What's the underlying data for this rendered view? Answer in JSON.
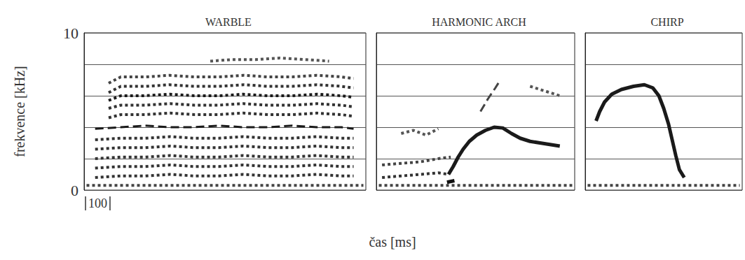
{
  "chart_data": [
    {
      "type": "line",
      "title": "WARBLE",
      "ylabel": "frekvence [kHz]",
      "xlim": [
        0,
        1150
      ],
      "ylim": [
        0,
        10
      ],
      "yticks": [
        0,
        {
          "value": 2,
          "label": null
        },
        {
          "value": 4,
          "label": null
        },
        {
          "value": 6,
          "label": null
        },
        {
          "value": 8,
          "label": null
        },
        10
      ],
      "grid": true,
      "tick_labels": "y",
      "scale_bar": 100,
      "series": [
        {
          "color": "#444444",
          "line_style": "dotted",
          "x": [
            10,
            200,
            400,
            600,
            800,
            1000,
            1140
          ],
          "values": [
            0.3,
            0.3,
            0.3,
            0.3,
            0.3,
            0.3,
            0.3
          ]
        },
        {
          "color": "#333333",
          "line_style": "dotted",
          "x": [
            45,
            150,
            250,
            350,
            450,
            550,
            650,
            750,
            850,
            950,
            1050,
            1100
          ],
          "values": [
            0.8,
            0.9,
            0.9,
            1.0,
            0.9,
            0.9,
            1.0,
            0.9,
            0.9,
            1.0,
            0.9,
            0.9
          ]
        },
        {
          "color": "#333333",
          "line_style": "dotted",
          "x": [
            45,
            150,
            250,
            350,
            450,
            550,
            650,
            750,
            850,
            950,
            1050,
            1100
          ],
          "values": [
            1.4,
            1.5,
            1.5,
            1.6,
            1.5,
            1.5,
            1.6,
            1.5,
            1.5,
            1.6,
            1.5,
            1.5
          ]
        },
        {
          "color": "#333333",
          "line_style": "dotted",
          "x": [
            45,
            150,
            250,
            350,
            450,
            550,
            650,
            750,
            850,
            950,
            1050,
            1100
          ],
          "values": [
            2.0,
            2.1,
            2.1,
            2.2,
            2.1,
            2.1,
            2.2,
            2.1,
            2.1,
            2.2,
            2.1,
            2.1
          ]
        },
        {
          "color": "#333333",
          "line_style": "dotted",
          "x": [
            45,
            150,
            250,
            350,
            450,
            550,
            650,
            750,
            850,
            950,
            1050,
            1100
          ],
          "values": [
            2.6,
            2.7,
            2.7,
            2.8,
            2.7,
            2.7,
            2.8,
            2.7,
            2.7,
            2.8,
            2.7,
            2.7
          ]
        },
        {
          "color": "#333333",
          "line_style": "dotted",
          "x": [
            45,
            150,
            250,
            350,
            450,
            550,
            650,
            750,
            850,
            950,
            1050,
            1100
          ],
          "values": [
            3.2,
            3.3,
            3.3,
            3.4,
            3.3,
            3.3,
            3.4,
            3.3,
            3.3,
            3.4,
            3.3,
            3.3
          ]
        },
        {
          "color": "#1a1a1a",
          "line_style": "dashed",
          "x": [
            45,
            150,
            250,
            350,
            450,
            550,
            650,
            750,
            850,
            950,
            1050,
            1100
          ],
          "values": [
            3.9,
            4.0,
            4.1,
            4.0,
            4.0,
            4.1,
            4.0,
            4.0,
            4.1,
            4.0,
            4.0,
            3.9
          ]
        },
        {
          "color": "#333333",
          "line_style": "dotted",
          "x": [
            100,
            150,
            250,
            350,
            450,
            550,
            650,
            750,
            850,
            950,
            1050,
            1100
          ],
          "values": [
            4.6,
            4.8,
            4.8,
            4.9,
            4.8,
            4.8,
            4.9,
            4.8,
            4.8,
            4.9,
            4.8,
            4.7
          ]
        },
        {
          "color": "#333333",
          "line_style": "dotted",
          "x": [
            100,
            150,
            250,
            350,
            450,
            550,
            650,
            750,
            850,
            950,
            1050,
            1100
          ],
          "values": [
            5.2,
            5.4,
            5.4,
            5.5,
            5.4,
            5.4,
            5.5,
            5.4,
            5.4,
            5.5,
            5.4,
            5.3
          ]
        },
        {
          "color": "#1a1a1a",
          "line_style": "dotted",
          "x": [
            100,
            150,
            250,
            350,
            450,
            550,
            650,
            750,
            850,
            950,
            1050,
            1100
          ],
          "values": [
            5.7,
            6.0,
            6.0,
            6.1,
            6.0,
            6.0,
            6.1,
            6.0,
            6.0,
            6.1,
            6.0,
            5.9
          ]
        },
        {
          "color": "#333333",
          "line_style": "dotted",
          "x": [
            100,
            150,
            250,
            350,
            450,
            550,
            650,
            750,
            850,
            950,
            1050,
            1100
          ],
          "values": [
            6.2,
            6.6,
            6.6,
            6.7,
            6.6,
            6.6,
            6.7,
            6.6,
            6.6,
            6.7,
            6.6,
            6.5
          ]
        },
        {
          "color": "#444444",
          "line_style": "dotted",
          "x": [
            100,
            150,
            250,
            350,
            450,
            550,
            650,
            750,
            850,
            950,
            1050,
            1100
          ],
          "values": [
            6.8,
            7.2,
            7.2,
            7.3,
            7.2,
            7.2,
            7.3,
            7.2,
            7.2,
            7.3,
            7.2,
            7.1
          ]
        },
        {
          "color": "#555555",
          "line_style": "dotted",
          "x": [
            515,
            600,
            700,
            800,
            900,
            1000
          ],
          "values": [
            8.2,
            8.3,
            8.3,
            8.4,
            8.3,
            8.2
          ]
        }
      ]
    },
    {
      "type": "line",
      "title": "HARMONIC ARCH",
      "xlim": [
        0,
        800
      ],
      "ylim": [
        0,
        10
      ],
      "yticks": [
        0,
        2,
        4,
        6,
        8,
        10
      ],
      "grid": true,
      "tick_labels": false,
      "series": [
        {
          "color": "#444444",
          "line_style": "dotted",
          "x": [
            10,
            790
          ],
          "values": [
            0.3,
            0.3
          ]
        },
        {
          "color": "#333333",
          "line_style": "dotted",
          "x": [
            23,
            100,
            178,
            250,
            291
          ],
          "values": [
            0.8,
            0.9,
            1.0,
            1.1,
            1.0
          ]
        },
        {
          "color": "#444444",
          "line_style": "dotted",
          "x": [
            23,
            100,
            178,
            250,
            300
          ],
          "values": [
            1.6,
            1.7,
            1.8,
            2.0,
            2.1
          ]
        },
        {
          "color": "#555555",
          "line_style": "dotted",
          "x": [
            100,
            150,
            200,
            250
          ],
          "values": [
            3.6,
            3.8,
            3.5,
            3.9
          ]
        },
        {
          "color": "#111111",
          "line_style": "solid",
          "x": [
            285,
            315
          ],
          "values": [
            0.5,
            0.6
          ]
        },
        {
          "color": "#1a1a1a",
          "line_style": "solid",
          "x": [
            291,
            310,
            330,
            350,
            375,
            405,
            440,
            475,
            510,
            545,
            580,
            620,
            660,
            700,
            740
          ],
          "values": [
            1.0,
            1.5,
            2.1,
            2.6,
            3.1,
            3.5,
            3.8,
            4.0,
            3.95,
            3.6,
            3.3,
            3.1,
            3.0,
            2.9,
            2.8
          ]
        },
        {
          "color": "#444444",
          "line_style": "dashed",
          "x": [
            420,
            450,
            480,
            500
          ],
          "values": [
            5.0,
            5.8,
            6.5,
            7.0
          ]
        },
        {
          "color": "#555555",
          "line_style": "dotted",
          "x": [
            620,
            680,
            740
          ],
          "values": [
            6.6,
            6.3,
            6.0
          ]
        }
      ]
    },
    {
      "type": "line",
      "title": "CHIRP",
      "xlim": [
        0,
        650
      ],
      "ylim": [
        0,
        10
      ],
      "yticks": [
        0,
        2,
        4,
        6,
        8,
        10
      ],
      "grid": true,
      "tick_labels": false,
      "series": [
        {
          "color": "#444444",
          "line_style": "dotted",
          "x": [
            10,
            640
          ],
          "values": [
            0.3,
            0.3
          ]
        },
        {
          "color": "#1a1a1a",
          "line_style": "solid",
          "x": [
            45,
            60,
            80,
            110,
            150,
            200,
            245,
            280,
            305,
            325,
            345,
            360,
            375,
            390,
            410
          ],
          "values": [
            4.4,
            5.0,
            5.6,
            6.1,
            6.4,
            6.6,
            6.7,
            6.5,
            6.0,
            5.2,
            4.2,
            3.2,
            2.2,
            1.3,
            0.8
          ]
        }
      ]
    }
  ],
  "xlabel": "čas [ms]"
}
